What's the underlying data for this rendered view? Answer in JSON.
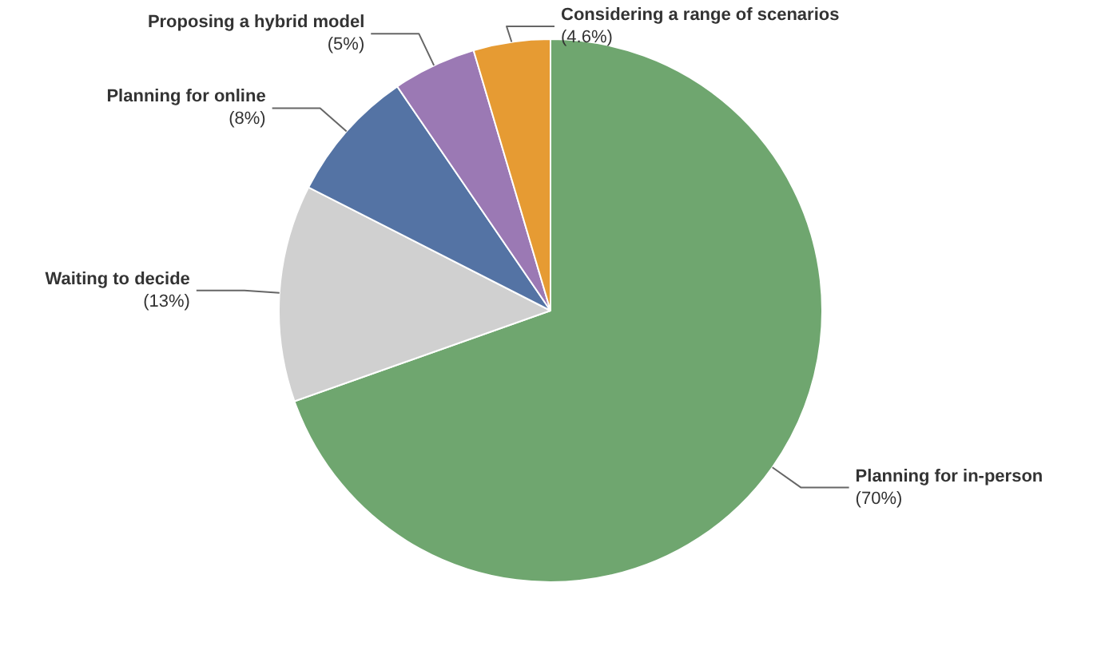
{
  "chart_data": {
    "type": "pie",
    "categories": [
      "Planning for in-person",
      "Waiting to decide",
      "Planning for online",
      "Proposing a hybrid model",
      "Considering a range of scenarios"
    ],
    "values": [
      70,
      13,
      8,
      5,
      4.6
    ],
    "value_labels": [
      "(70%)",
      "(13%)",
      "(8%)",
      "(5%)",
      "(4.6%)"
    ],
    "colors": [
      "#6fa66f",
      "#d0d0d0",
      "#5473a4",
      "#9b79b4",
      "#e69b33"
    ]
  }
}
